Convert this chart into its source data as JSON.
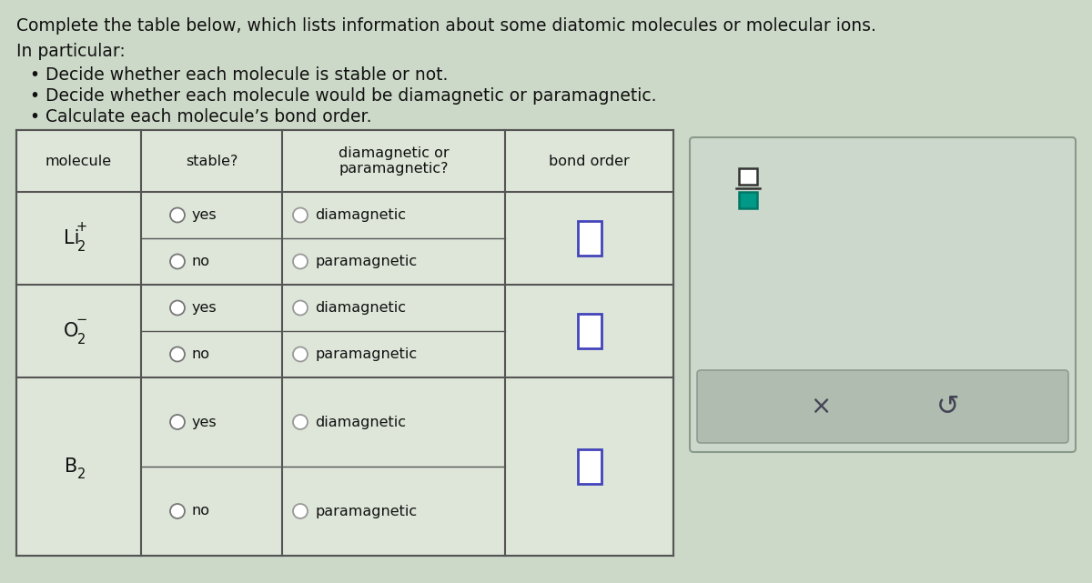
{
  "title_line1": "Complete the table below, which lists information about some diatomic molecules or molecular ions.",
  "title_line2": "In particular:",
  "bullets": [
    "Decide whether each molecule is stable or not.",
    "Decide whether each molecule would be diamagnetic or paramagnetic.",
    "Calculate each molecule’s bond order."
  ],
  "bg_color": "#cdd9c8",
  "table_bg": "#dde6d8",
  "table_border_color": "#555555",
  "col_headers": [
    "molecule",
    "stable?",
    "diamagnetic or\nparamagnetic?",
    "bond order"
  ],
  "molecules": [
    {
      "main": "Li",
      "sub": "2",
      "sup": "+"
    },
    {
      "main": "O",
      "sub": "2",
      "sup": "−"
    },
    {
      "main": "B",
      "sub": "2",
      "sup": ""
    }
  ],
  "radio_label_yes": "yes",
  "radio_label_no": "no",
  "mag_label_dia": "diamagnetic",
  "mag_label_para": "paramagnetic",
  "bond_box_color": "#4444bb",
  "widget_outer_color": "#aab8aa",
  "widget_inner_color": "#b8c4b8",
  "widget_btn_color": "#b0bcb0",
  "x_color": "#444455",
  "frac_top_color": "#333333",
  "frac_bot_color": "#009988",
  "text_color": "#111111"
}
